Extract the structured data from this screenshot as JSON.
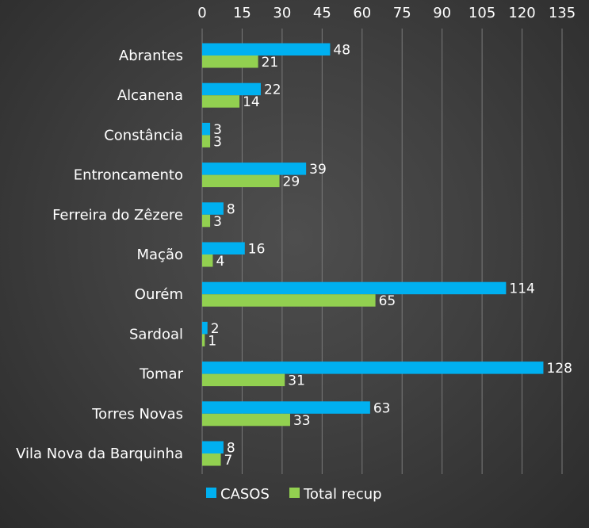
{
  "chart_data": {
    "type": "bar",
    "orientation": "horizontal",
    "title": "",
    "xlabel": "",
    "ylabel": "",
    "xlim": [
      0,
      135
    ],
    "x_ticks": [
      0,
      15,
      30,
      45,
      60,
      75,
      90,
      105,
      120,
      135
    ],
    "x_axis_position": "top",
    "grid": true,
    "legend_position": "bottom",
    "categories": [
      "Abrantes",
      "Alcanena",
      "Constância",
      "Entroncamento",
      "Ferreira do Zêzere",
      "Mação",
      "Ourém",
      "Sardoal",
      "Tomar",
      "Torres Novas",
      "Vila Nova da Barquinha"
    ],
    "series": [
      {
        "name": "CASOS",
        "color": "#00b0f0",
        "values": [
          48,
          22,
          3,
          39,
          8,
          16,
          114,
          2,
          128,
          63,
          8
        ]
      },
      {
        "name": "Total recup",
        "color": "#92d050",
        "values": [
          21,
          14,
          3,
          29,
          3,
          4,
          65,
          1,
          31,
          33,
          7
        ]
      }
    ]
  }
}
